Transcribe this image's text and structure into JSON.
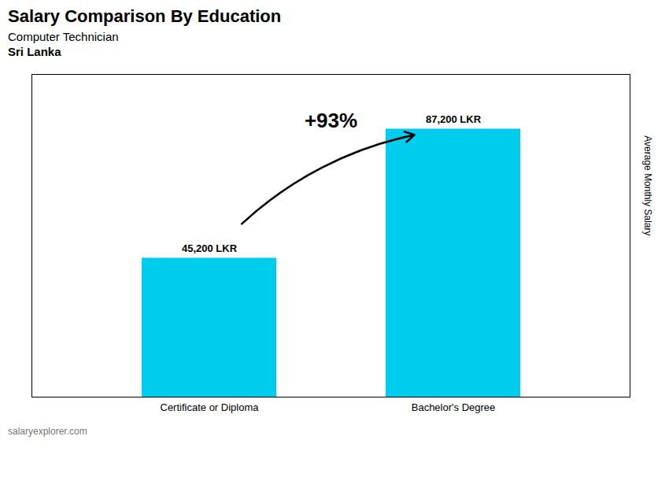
{
  "chart_data": {
    "type": "bar",
    "title": "Salary Comparison By Education",
    "subtitle": "Computer Technician",
    "annotations": [
      "Sri Lanka",
      "+93%",
      "salaryexplorer.com"
    ],
    "ylabel": "Average Monthly Salary",
    "categories": [
      "Certificate or Diploma",
      "Bachelor's Degree"
    ],
    "values": [
      45200,
      87200
    ],
    "value_labels": [
      "45,200 LKR",
      "87,200 LKR"
    ],
    "data_labels": true,
    "color": "#00ccee",
    "ylim": [
      0,
      105000
    ],
    "tick_labels": "x",
    "grid": false
  }
}
